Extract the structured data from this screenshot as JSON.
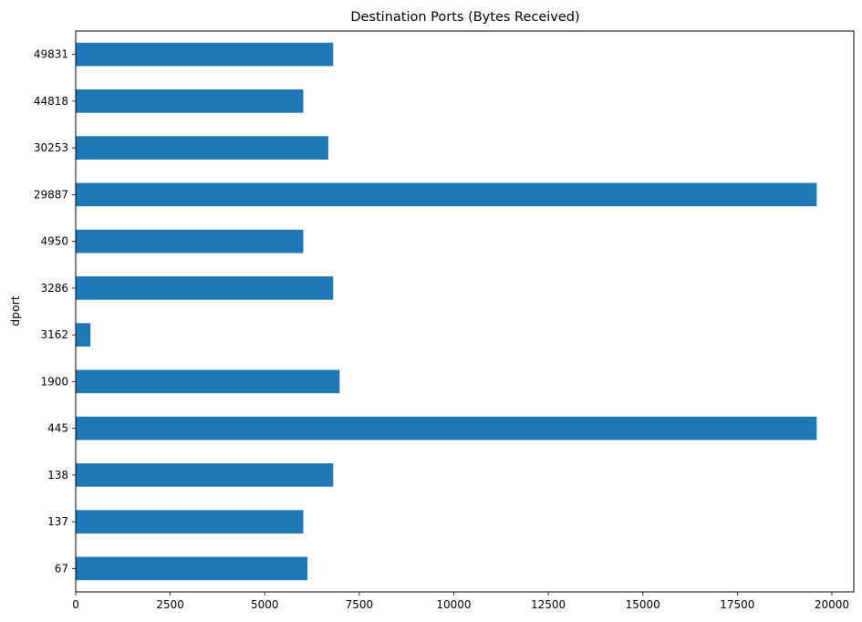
{
  "chart_data": {
    "type": "bar",
    "orientation": "horizontal",
    "title": "Destination Ports (Bytes Received)",
    "ylabel": "dport",
    "xlabel": "",
    "categories": [
      "67",
      "137",
      "138",
      "445",
      "1900",
      "3162",
      "3286",
      "4950",
      "29887",
      "30253",
      "44818",
      "49831"
    ],
    "values": [
      6130,
      6020,
      6810,
      19600,
      6980,
      390,
      6810,
      6020,
      19600,
      6680,
      6020,
      6810
    ],
    "xlim": [
      0,
      20580
    ],
    "xticks": [
      0,
      2500,
      5000,
      7500,
      10000,
      12500,
      15000,
      17500,
      20000
    ],
    "xtick_labels": [
      "0",
      "2500",
      "5000",
      "7500",
      "10000",
      "12500",
      "15000",
      "17500",
      "20000"
    ],
    "bar_color": "#1f77b4",
    "grid": false,
    "legend": "none"
  }
}
